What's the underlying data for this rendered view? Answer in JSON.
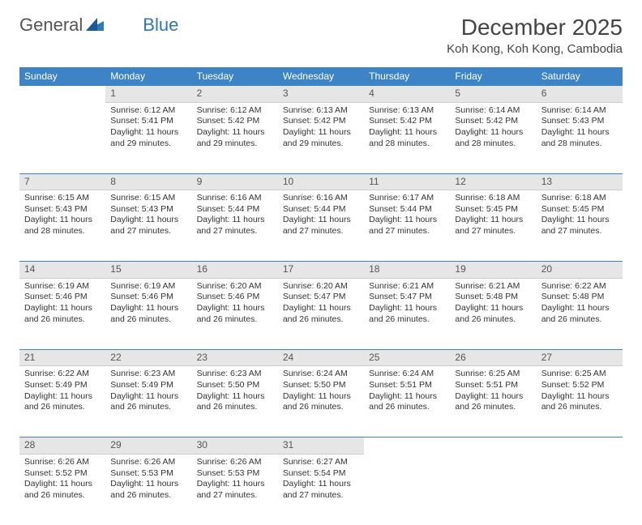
{
  "brand": {
    "part1": "General",
    "part2": "Blue"
  },
  "title": "December 2025",
  "location": "Koh Kong, Koh Kong, Cambodia",
  "colors": {
    "header_bg": "#3d84c6",
    "header_text": "#ffffff",
    "daynum_bg": "#e6e6e6",
    "border": "#3d84c6",
    "text": "#333333",
    "background": "#ffffff"
  },
  "weekdays": [
    "Sunday",
    "Monday",
    "Tuesday",
    "Wednesday",
    "Thursday",
    "Friday",
    "Saturday"
  ],
  "weeks": [
    {
      "nums": [
        "",
        "1",
        "2",
        "3",
        "4",
        "5",
        "6"
      ],
      "cells": [
        null,
        {
          "sr": "Sunrise: 6:12 AM",
          "ss": "Sunset: 5:41 PM",
          "d1": "Daylight: 11 hours",
          "d2": "and 29 minutes."
        },
        {
          "sr": "Sunrise: 6:12 AM",
          "ss": "Sunset: 5:42 PM",
          "d1": "Daylight: 11 hours",
          "d2": "and 29 minutes."
        },
        {
          "sr": "Sunrise: 6:13 AM",
          "ss": "Sunset: 5:42 PM",
          "d1": "Daylight: 11 hours",
          "d2": "and 29 minutes."
        },
        {
          "sr": "Sunrise: 6:13 AM",
          "ss": "Sunset: 5:42 PM",
          "d1": "Daylight: 11 hours",
          "d2": "and 28 minutes."
        },
        {
          "sr": "Sunrise: 6:14 AM",
          "ss": "Sunset: 5:42 PM",
          "d1": "Daylight: 11 hours",
          "d2": "and 28 minutes."
        },
        {
          "sr": "Sunrise: 6:14 AM",
          "ss": "Sunset: 5:43 PM",
          "d1": "Daylight: 11 hours",
          "d2": "and 28 minutes."
        }
      ]
    },
    {
      "nums": [
        "7",
        "8",
        "9",
        "10",
        "11",
        "12",
        "13"
      ],
      "cells": [
        {
          "sr": "Sunrise: 6:15 AM",
          "ss": "Sunset: 5:43 PM",
          "d1": "Daylight: 11 hours",
          "d2": "and 28 minutes."
        },
        {
          "sr": "Sunrise: 6:15 AM",
          "ss": "Sunset: 5:43 PM",
          "d1": "Daylight: 11 hours",
          "d2": "and 27 minutes."
        },
        {
          "sr": "Sunrise: 6:16 AM",
          "ss": "Sunset: 5:44 PM",
          "d1": "Daylight: 11 hours",
          "d2": "and 27 minutes."
        },
        {
          "sr": "Sunrise: 6:16 AM",
          "ss": "Sunset: 5:44 PM",
          "d1": "Daylight: 11 hours",
          "d2": "and 27 minutes."
        },
        {
          "sr": "Sunrise: 6:17 AM",
          "ss": "Sunset: 5:44 PM",
          "d1": "Daylight: 11 hours",
          "d2": "and 27 minutes."
        },
        {
          "sr": "Sunrise: 6:18 AM",
          "ss": "Sunset: 5:45 PM",
          "d1": "Daylight: 11 hours",
          "d2": "and 27 minutes."
        },
        {
          "sr": "Sunrise: 6:18 AM",
          "ss": "Sunset: 5:45 PM",
          "d1": "Daylight: 11 hours",
          "d2": "and 27 minutes."
        }
      ]
    },
    {
      "nums": [
        "14",
        "15",
        "16",
        "17",
        "18",
        "19",
        "20"
      ],
      "cells": [
        {
          "sr": "Sunrise: 6:19 AM",
          "ss": "Sunset: 5:46 PM",
          "d1": "Daylight: 11 hours",
          "d2": "and 26 minutes."
        },
        {
          "sr": "Sunrise: 6:19 AM",
          "ss": "Sunset: 5:46 PM",
          "d1": "Daylight: 11 hours",
          "d2": "and 26 minutes."
        },
        {
          "sr": "Sunrise: 6:20 AM",
          "ss": "Sunset: 5:46 PM",
          "d1": "Daylight: 11 hours",
          "d2": "and 26 minutes."
        },
        {
          "sr": "Sunrise: 6:20 AM",
          "ss": "Sunset: 5:47 PM",
          "d1": "Daylight: 11 hours",
          "d2": "and 26 minutes."
        },
        {
          "sr": "Sunrise: 6:21 AM",
          "ss": "Sunset: 5:47 PM",
          "d1": "Daylight: 11 hours",
          "d2": "and 26 minutes."
        },
        {
          "sr": "Sunrise: 6:21 AM",
          "ss": "Sunset: 5:48 PM",
          "d1": "Daylight: 11 hours",
          "d2": "and 26 minutes."
        },
        {
          "sr": "Sunrise: 6:22 AM",
          "ss": "Sunset: 5:48 PM",
          "d1": "Daylight: 11 hours",
          "d2": "and 26 minutes."
        }
      ]
    },
    {
      "nums": [
        "21",
        "22",
        "23",
        "24",
        "25",
        "26",
        "27"
      ],
      "cells": [
        {
          "sr": "Sunrise: 6:22 AM",
          "ss": "Sunset: 5:49 PM",
          "d1": "Daylight: 11 hours",
          "d2": "and 26 minutes."
        },
        {
          "sr": "Sunrise: 6:23 AM",
          "ss": "Sunset: 5:49 PM",
          "d1": "Daylight: 11 hours",
          "d2": "and 26 minutes."
        },
        {
          "sr": "Sunrise: 6:23 AM",
          "ss": "Sunset: 5:50 PM",
          "d1": "Daylight: 11 hours",
          "d2": "and 26 minutes."
        },
        {
          "sr": "Sunrise: 6:24 AM",
          "ss": "Sunset: 5:50 PM",
          "d1": "Daylight: 11 hours",
          "d2": "and 26 minutes."
        },
        {
          "sr": "Sunrise: 6:24 AM",
          "ss": "Sunset: 5:51 PM",
          "d1": "Daylight: 11 hours",
          "d2": "and 26 minutes."
        },
        {
          "sr": "Sunrise: 6:25 AM",
          "ss": "Sunset: 5:51 PM",
          "d1": "Daylight: 11 hours",
          "d2": "and 26 minutes."
        },
        {
          "sr": "Sunrise: 6:25 AM",
          "ss": "Sunset: 5:52 PM",
          "d1": "Daylight: 11 hours",
          "d2": "and 26 minutes."
        }
      ]
    },
    {
      "nums": [
        "28",
        "29",
        "30",
        "31",
        "",
        "",
        ""
      ],
      "cells": [
        {
          "sr": "Sunrise: 6:26 AM",
          "ss": "Sunset: 5:52 PM",
          "d1": "Daylight: 11 hours",
          "d2": "and 26 minutes."
        },
        {
          "sr": "Sunrise: 6:26 AM",
          "ss": "Sunset: 5:53 PM",
          "d1": "Daylight: 11 hours",
          "d2": "and 26 minutes."
        },
        {
          "sr": "Sunrise: 6:26 AM",
          "ss": "Sunset: 5:53 PM",
          "d1": "Daylight: 11 hours",
          "d2": "and 27 minutes."
        },
        {
          "sr": "Sunrise: 6:27 AM",
          "ss": "Sunset: 5:54 PM",
          "d1": "Daylight: 11 hours",
          "d2": "and 27 minutes."
        },
        null,
        null,
        null
      ]
    }
  ]
}
